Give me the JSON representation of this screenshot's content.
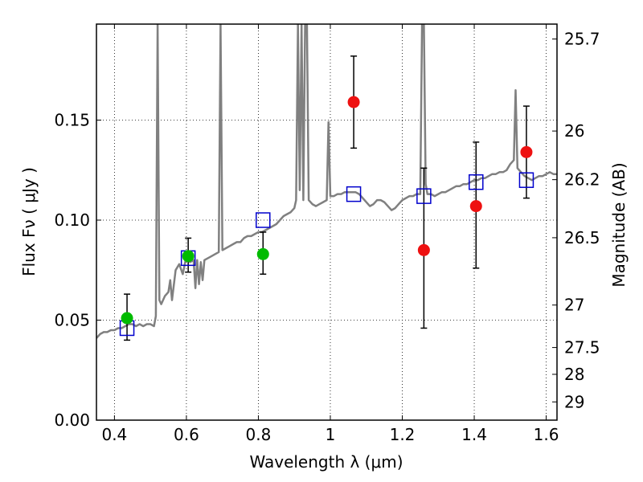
{
  "chart_data": {
    "type": "scatter",
    "title": "",
    "xlabel": "Wavelength  λ (μm)",
    "ylabel": "Flux  Fν  ( μJy )",
    "ylabel_right": "Magnitude (AB)",
    "xlim": [
      0.35,
      1.63
    ],
    "ylim": [
      0.0,
      0.198
    ],
    "grid": true,
    "x_ticks": [
      {
        "v": 0.4,
        "label": "0.4"
      },
      {
        "v": 0.6,
        "label": "0.6"
      },
      {
        "v": 0.8,
        "label": "0.8"
      },
      {
        "v": 1.0,
        "label": "1"
      },
      {
        "v": 1.2,
        "label": "1.2"
      },
      {
        "v": 1.4,
        "label": "1.4"
      },
      {
        "v": 1.6,
        "label": "1.6"
      }
    ],
    "y_ticks": [
      {
        "v": 0.0,
        "label": "0.00"
      },
      {
        "v": 0.05,
        "label": "0.05"
      },
      {
        "v": 0.1,
        "label": "0.10"
      },
      {
        "v": 0.15,
        "label": "0.15"
      }
    ],
    "y_right_ticks": [
      {
        "mag": 25.7,
        "label": "25.7"
      },
      {
        "mag": 26,
        "label": "26"
      },
      {
        "mag": 26.2,
        "label": "26.2"
      },
      {
        "mag": 26.5,
        "label": "26.5"
      },
      {
        "mag": 27,
        "label": "27"
      },
      {
        "mag": 27.5,
        "label": "27.5"
      },
      {
        "mag": 28,
        "label": "28"
      },
      {
        "mag": 29,
        "label": "29"
      }
    ],
    "colors": {
      "model": "#808080",
      "green": "#00bb00",
      "red": "#ee1111",
      "box": "#0000cc",
      "errorbar": "#000000"
    },
    "series": [
      {
        "kind": "line",
        "points": [
          [
            0.35,
            0.041
          ],
          [
            0.36,
            0.043
          ],
          [
            0.37,
            0.044
          ],
          [
            0.38,
            0.044
          ],
          [
            0.39,
            0.045
          ],
          [
            0.4,
            0.045
          ],
          [
            0.41,
            0.046
          ],
          [
            0.42,
            0.046
          ],
          [
            0.43,
            0.047
          ],
          [
            0.44,
            0.048
          ],
          [
            0.45,
            0.048
          ],
          [
            0.46,
            0.047
          ],
          [
            0.47,
            0.048
          ],
          [
            0.48,
            0.047
          ],
          [
            0.49,
            0.048
          ],
          [
            0.5,
            0.048
          ],
          [
            0.51,
            0.047
          ],
          [
            0.515,
            0.052
          ],
          [
            0.52,
            0.198
          ],
          [
            0.525,
            0.06
          ],
          [
            0.53,
            0.058
          ],
          [
            0.54,
            0.062
          ],
          [
            0.55,
            0.064
          ],
          [
            0.555,
            0.07
          ],
          [
            0.56,
            0.06
          ],
          [
            0.57,
            0.075
          ],
          [
            0.58,
            0.078
          ],
          [
            0.59,
            0.073
          ],
          [
            0.6,
            0.082
          ],
          [
            0.61,
            0.079
          ],
          [
            0.62,
            0.08
          ],
          [
            0.625,
            0.066
          ],
          [
            0.63,
            0.08
          ],
          [
            0.635,
            0.068
          ],
          [
            0.64,
            0.079
          ],
          [
            0.645,
            0.07
          ],
          [
            0.65,
            0.08
          ],
          [
            0.66,
            0.081
          ],
          [
            0.67,
            0.082
          ],
          [
            0.68,
            0.083
          ],
          [
            0.69,
            0.084
          ],
          [
            0.695,
            0.198
          ],
          [
            0.7,
            0.085
          ],
          [
            0.71,
            0.086
          ],
          [
            0.72,
            0.087
          ],
          [
            0.73,
            0.088
          ],
          [
            0.74,
            0.089
          ],
          [
            0.75,
            0.089
          ],
          [
            0.76,
            0.091
          ],
          [
            0.77,
            0.092
          ],
          [
            0.78,
            0.092
          ],
          [
            0.79,
            0.093
          ],
          [
            0.8,
            0.094
          ],
          [
            0.81,
            0.094
          ],
          [
            0.82,
            0.095
          ],
          [
            0.83,
            0.096
          ],
          [
            0.84,
            0.097
          ],
          [
            0.85,
            0.098
          ],
          [
            0.86,
            0.1
          ],
          [
            0.87,
            0.102
          ],
          [
            0.88,
            0.103
          ],
          [
            0.89,
            0.104
          ],
          [
            0.9,
            0.106
          ],
          [
            0.905,
            0.11
          ],
          [
            0.91,
            0.198
          ],
          [
            0.915,
            0.115
          ],
          [
            0.92,
            0.198
          ],
          [
            0.925,
            0.11
          ],
          [
            0.93,
            0.198
          ],
          [
            0.935,
            0.198
          ],
          [
            0.94,
            0.11
          ],
          [
            0.95,
            0.108
          ],
          [
            0.96,
            0.107
          ],
          [
            0.97,
            0.108
          ],
          [
            0.98,
            0.109
          ],
          [
            0.99,
            0.11
          ],
          [
            0.995,
            0.149
          ],
          [
            1.0,
            0.112
          ],
          [
            1.01,
            0.112
          ],
          [
            1.02,
            0.113
          ],
          [
            1.03,
            0.113
          ],
          [
            1.04,
            0.114
          ],
          [
            1.05,
            0.114
          ],
          [
            1.06,
            0.114
          ],
          [
            1.07,
            0.114
          ],
          [
            1.08,
            0.113
          ],
          [
            1.09,
            0.111
          ],
          [
            1.1,
            0.109
          ],
          [
            1.11,
            0.107
          ],
          [
            1.12,
            0.108
          ],
          [
            1.13,
            0.11
          ],
          [
            1.14,
            0.11
          ],
          [
            1.15,
            0.109
          ],
          [
            1.16,
            0.107
          ],
          [
            1.17,
            0.105
          ],
          [
            1.18,
            0.106
          ],
          [
            1.19,
            0.108
          ],
          [
            1.2,
            0.11
          ],
          [
            1.21,
            0.111
          ],
          [
            1.22,
            0.112
          ],
          [
            1.23,
            0.112
          ],
          [
            1.24,
            0.113
          ],
          [
            1.25,
            0.113
          ],
          [
            1.255,
            0.198
          ],
          [
            1.26,
            0.198
          ],
          [
            1.265,
            0.118
          ],
          [
            1.27,
            0.113
          ],
          [
            1.28,
            0.113
          ],
          [
            1.29,
            0.112
          ],
          [
            1.3,
            0.113
          ],
          [
            1.31,
            0.114
          ],
          [
            1.32,
            0.114
          ],
          [
            1.33,
            0.115
          ],
          [
            1.34,
            0.116
          ],
          [
            1.35,
            0.117
          ],
          [
            1.36,
            0.117
          ],
          [
            1.37,
            0.118
          ],
          [
            1.38,
            0.118
          ],
          [
            1.39,
            0.119
          ],
          [
            1.4,
            0.12
          ],
          [
            1.41,
            0.12
          ],
          [
            1.42,
            0.121
          ],
          [
            1.43,
            0.121
          ],
          [
            1.44,
            0.122
          ],
          [
            1.45,
            0.123
          ],
          [
            1.46,
            0.123
          ],
          [
            1.47,
            0.124
          ],
          [
            1.48,
            0.124
          ],
          [
            1.49,
            0.125
          ],
          [
            1.5,
            0.128
          ],
          [
            1.51,
            0.13
          ],
          [
            1.515,
            0.165
          ],
          [
            1.52,
            0.126
          ],
          [
            1.53,
            0.124
          ],
          [
            1.54,
            0.122
          ],
          [
            1.55,
            0.121
          ],
          [
            1.56,
            0.12
          ],
          [
            1.57,
            0.121
          ],
          [
            1.58,
            0.122
          ],
          [
            1.59,
            0.122
          ],
          [
            1.6,
            0.123
          ],
          [
            1.61,
            0.124
          ],
          [
            1.62,
            0.123
          ],
          [
            1.63,
            0.123
          ]
        ]
      },
      {
        "kind": "points",
        "marker": "circle",
        "color": "green",
        "points": [
          {
            "x": 0.435,
            "y": 0.051,
            "lo": 0.04,
            "hi": 0.063
          },
          {
            "x": 0.605,
            "y": 0.082,
            "lo": 0.074,
            "hi": 0.091
          },
          {
            "x": 0.813,
            "y": 0.083,
            "lo": 0.073,
            "hi": 0.094
          }
        ]
      },
      {
        "kind": "points",
        "marker": "circle",
        "color": "red",
        "points": [
          {
            "x": 1.065,
            "y": 0.159,
            "lo": 0.136,
            "hi": 0.182
          },
          {
            "x": 1.26,
            "y": 0.085,
            "lo": 0.046,
            "hi": 0.126
          },
          {
            "x": 1.405,
            "y": 0.107,
            "lo": 0.076,
            "hi": 0.139
          },
          {
            "x": 1.545,
            "y": 0.134,
            "lo": 0.111,
            "hi": 0.157
          }
        ]
      },
      {
        "kind": "points",
        "marker": "square-open",
        "color": "box",
        "points": [
          {
            "x": 0.435,
            "y": 0.046
          },
          {
            "x": 0.605,
            "y": 0.081
          },
          {
            "x": 0.813,
            "y": 0.1
          },
          {
            "x": 1.065,
            "y": 0.113
          },
          {
            "x": 1.26,
            "y": 0.112
          },
          {
            "x": 1.405,
            "y": 0.119
          },
          {
            "x": 1.545,
            "y": 0.12
          }
        ]
      }
    ]
  }
}
